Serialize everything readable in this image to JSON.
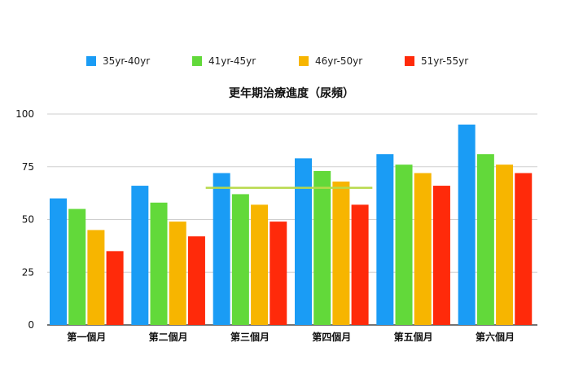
{
  "chart_data": {
    "type": "bar",
    "title": "更年期治療進度（尿頻）",
    "xlabel": "",
    "ylabel": "",
    "ylim": [
      0,
      100
    ],
    "yticks": [
      0,
      25,
      50,
      75,
      100
    ],
    "grid": true,
    "legend_position": "top",
    "categories": [
      "第一個月",
      "第二個月",
      "第三個月",
      "第四個月",
      "第五個月",
      "第六個月"
    ],
    "series": [
      {
        "name": "35yr-40yr",
        "color": "#1a9cf5",
        "values": [
          60,
          66,
          72,
          79,
          81,
          95
        ]
      },
      {
        "name": "41yr-45yr",
        "color": "#62d93a",
        "values": [
          55,
          58,
          62,
          73,
          76,
          81
        ]
      },
      {
        "name": "46yr-50yr",
        "color": "#f7b500",
        "values": [
          45,
          49,
          57,
          68,
          72,
          76
        ]
      },
      {
        "name": "51yr-55yr",
        "color": "#ff2a0a",
        "values": [
          35,
          42,
          49,
          57,
          66,
          72
        ]
      }
    ],
    "reference_line": {
      "value": 65,
      "from_category": 2,
      "to_category": 3,
      "color": "#b8d94a"
    }
  }
}
